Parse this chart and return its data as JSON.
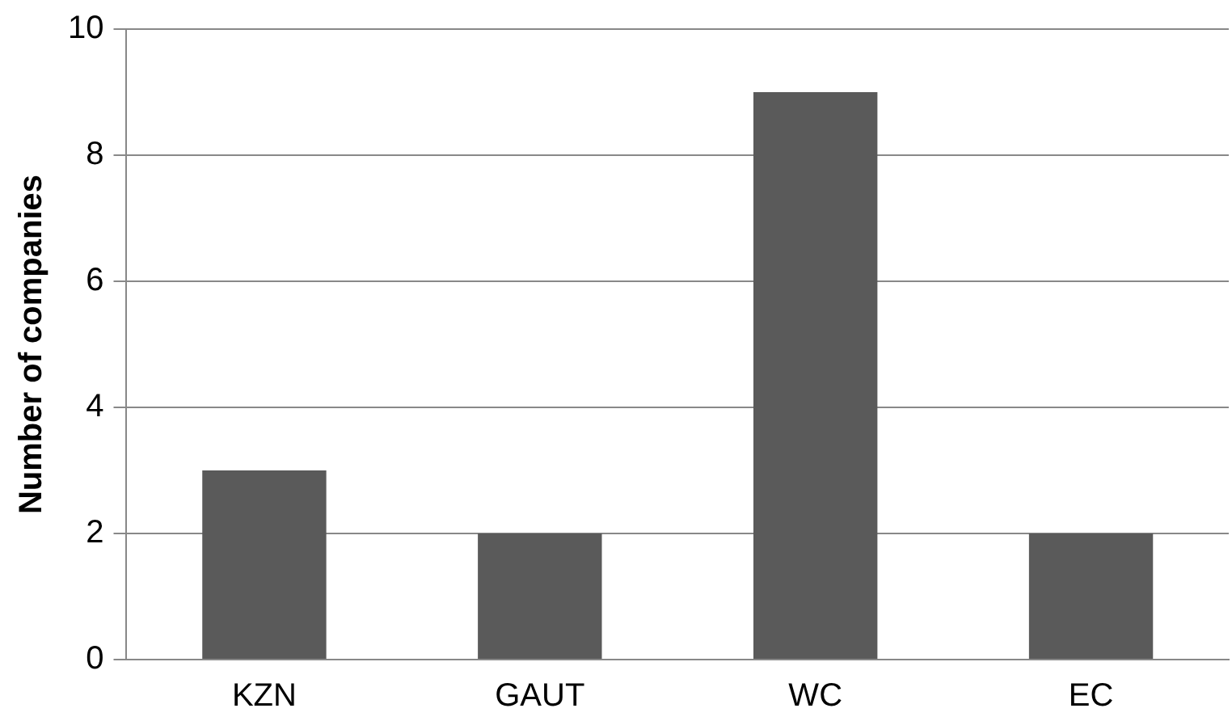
{
  "chart_data": {
    "type": "bar",
    "ylabel": "Number of companies",
    "categories": [
      "KZN",
      "GAUT",
      "WC",
      "EC"
    ],
    "values": [
      3,
      2,
      9,
      2
    ],
    "color": "#5a5a5a",
    "ylim": [
      0,
      10
    ],
    "yticks": [
      0,
      2,
      4,
      6,
      8,
      10
    ],
    "grid": "y"
  }
}
